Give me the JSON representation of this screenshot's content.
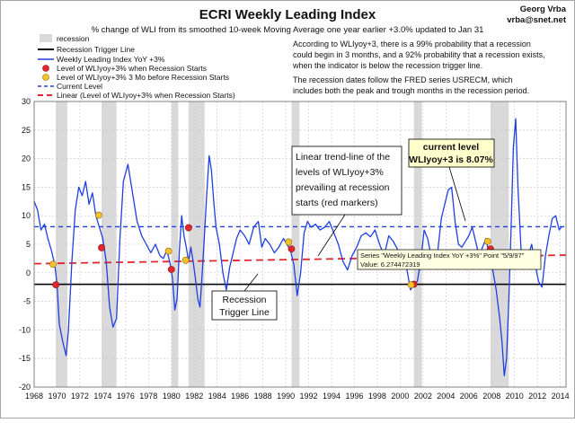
{
  "header": {
    "title": "ECRI Weekly Leading Index",
    "subtitle": "% change of WLI from its smoothed 10-week Moving Average one year earlier +3.0% updated to Jan 31",
    "author_line1": "Georg Vrba",
    "author_line2": "vrba@snet.net"
  },
  "legend": {
    "items": [
      {
        "key": "recession",
        "label": "recession"
      },
      {
        "key": "trigger",
        "label": "Recession Trigger Line"
      },
      {
        "key": "wli",
        "label": "Weekly Leading Index YoY +3%"
      },
      {
        "key": "red_dots",
        "label": "Level of WLIyoy+3% when Recession Starts"
      },
      {
        "key": "yellow_dots",
        "label": "Level of WLIyoy+3% 3 Mo before Recession Starts"
      },
      {
        "key": "current",
        "label": "Current Level"
      },
      {
        "key": "linear",
        "label": "Linear (Level of WLIyoy+3% when Recession Starts)"
      }
    ]
  },
  "notes": {
    "prob_lines": [
      "According to WLIyoy+3, there is a 99% probability that a recession",
      "could begin in 3 months, and a 92% probability that a recession exists,",
      "when the indicator is below the recession trigger line."
    ],
    "fred_lines": [
      "The recession dates follow the FRED series USRECM, which",
      "includes both the peak and trough months in the recession period."
    ]
  },
  "annotations": {
    "trend_lines": [
      "Linear trend-line of the",
      "levels of WLIyoy+3%",
      "prevailing at recession",
      "starts (red markers)"
    ],
    "current_lines": [
      "current level",
      "WLIyoy+3 is 8.07%"
    ],
    "trigger_lines": [
      "Recession",
      "Trigger Line"
    ],
    "tooltip_lines": [
      "Series \"Weekly Leading Index YoY +3%\" Point \"5/9/97\"",
      "Value: 6.274472319"
    ]
  },
  "colors": {
    "series": "#1f3fe0",
    "recession": "#d9d9d9",
    "trigger": "#000000",
    "red_marker": "#e3262b",
    "yellow_marker": "#f6c12e",
    "current": "#1f3fe0",
    "linear": "#e3262b",
    "plot_bg": "#ffffff",
    "annot_bg": "#ffffcc"
  },
  "chart_data": {
    "type": "line",
    "title": "ECRI Weekly Leading Index",
    "ylim": [
      -20,
      30
    ],
    "yticks": [
      -20,
      -15,
      -10,
      -5,
      0,
      5,
      10,
      15,
      20,
      25,
      30
    ],
    "xlim": [
      1968,
      2014.5
    ],
    "xticks": [
      "1968",
      "1970",
      "1972",
      "1974",
      "1976",
      "1978",
      "1980",
      "1982",
      "1984",
      "1986",
      "1988",
      "1990",
      "1992",
      "1994",
      "1996",
      "1998",
      "2000",
      "2002",
      "2004",
      "2006",
      "2008",
      "2010",
      "2012",
      "2014"
    ],
    "grid": true,
    "legend_position": "top-left",
    "recessions": [
      [
        1969.9,
        1970.9
      ],
      [
        1973.9,
        1975.2
      ],
      [
        1980.0,
        1980.6
      ],
      [
        1981.5,
        1982.9
      ],
      [
        1990.5,
        1991.2
      ],
      [
        2001.2,
        2001.9
      ],
      [
        2007.9,
        2009.5
      ]
    ],
    "trigger_level": -2.0,
    "current_level": 8.07,
    "linear_trend": {
      "start": [
        1968,
        1.6
      ],
      "end": [
        2014.5,
        3.1
      ]
    },
    "series": [
      {
        "name": "Weekly Leading Index YoY +3%",
        "x": [
          1968.0,
          1968.3,
          1968.6,
          1968.9,
          1969.2,
          1969.5,
          1969.8,
          1970.0,
          1970.2,
          1970.5,
          1970.8,
          1971.0,
          1971.3,
          1971.6,
          1971.9,
          1972.2,
          1972.5,
          1972.8,
          1973.1,
          1973.4,
          1973.7,
          1974.0,
          1974.3,
          1974.6,
          1974.9,
          1975.2,
          1975.5,
          1975.8,
          1976.2,
          1976.6,
          1977.0,
          1977.4,
          1977.8,
          1978.2,
          1978.6,
          1979.0,
          1979.3,
          1979.6,
          1979.9,
          1980.1,
          1980.3,
          1980.5,
          1980.7,
          1980.9,
          1981.1,
          1981.3,
          1981.5,
          1981.7,
          1981.9,
          1982.1,
          1982.3,
          1982.5,
          1982.7,
          1982.9,
          1983.1,
          1983.3,
          1983.5,
          1983.7,
          1983.9,
          1984.2,
          1984.5,
          1984.8,
          1985.1,
          1985.4,
          1985.7,
          1986.0,
          1986.4,
          1986.8,
          1987.2,
          1987.6,
          1987.9,
          1988.2,
          1988.6,
          1989.0,
          1989.4,
          1989.8,
          1990.1,
          1990.4,
          1990.7,
          1991.0,
          1991.3,
          1991.6,
          1991.9,
          1992.2,
          1992.6,
          1993.0,
          1993.4,
          1993.8,
          1994.2,
          1994.6,
          1995.0,
          1995.4,
          1995.8,
          1996.2,
          1996.6,
          1997.0,
          1997.4,
          1997.8,
          1998.2,
          1998.6,
          1999.0,
          1999.4,
          1999.8,
          2000.2,
          2000.6,
          2000.9,
          2001.2,
          2001.5,
          2001.8,
          2002.1,
          2002.4,
          2002.7,
          2003.0,
          2003.3,
          2003.6,
          2003.9,
          2004.2,
          2004.5,
          2004.8,
          2005.1,
          2005.4,
          2005.7,
          2006.0,
          2006.3,
          2006.6,
          2006.9,
          2007.2,
          2007.5,
          2007.8,
          2008.1,
          2008.4,
          2008.7,
          2008.9,
          2009.1,
          2009.3,
          2009.5,
          2009.7,
          2009.9,
          2010.1,
          2010.3,
          2010.6,
          2010.9,
          2011.2,
          2011.5,
          2011.8,
          2012.1,
          2012.4,
          2012.7,
          2013.0,
          2013.3,
          2013.6,
          2013.9,
          2014.1
        ],
        "y": [
          12.5,
          11.0,
          7.5,
          8.5,
          6.0,
          4.0,
          1.5,
          -2.0,
          -9.0,
          -12.0,
          -14.5,
          -10.0,
          2.0,
          11.0,
          15.0,
          13.5,
          16.0,
          12.0,
          14.0,
          10.0,
          8.0,
          6.0,
          2.0,
          -6.0,
          -9.5,
          -8.0,
          6.0,
          16.0,
          19.0,
          14.0,
          9.0,
          6.5,
          5.0,
          3.5,
          5.0,
          3.0,
          2.5,
          4.0,
          1.5,
          -1.0,
          -6.5,
          -4.5,
          4.0,
          10.0,
          6.5,
          4.5,
          2.0,
          4.5,
          2.0,
          -1.0,
          -4.5,
          -6.0,
          0.0,
          7.0,
          14.0,
          20.5,
          18.0,
          12.5,
          8.0,
          5.0,
          0.0,
          -3.0,
          1.0,
          3.5,
          6.0,
          7.5,
          6.5,
          5.0,
          8.0,
          9.0,
          4.5,
          6.0,
          5.0,
          3.5,
          4.5,
          6.0,
          5.0,
          4.0,
          1.5,
          -4.0,
          0.0,
          7.0,
          9.0,
          8.0,
          8.5,
          7.5,
          8.0,
          9.0,
          7.0,
          5.0,
          2.0,
          0.5,
          3.0,
          4.5,
          6.5,
          7.0,
          6.3,
          7.5,
          5.0,
          3.0,
          6.5,
          5.5,
          4.0,
          3.0,
          0.5,
          -3.0,
          -2.0,
          -1.5,
          2.0,
          7.5,
          6.0,
          3.0,
          2.0,
          4.0,
          9.5,
          12.0,
          14.5,
          15.0,
          9.0,
          5.0,
          4.5,
          5.5,
          6.5,
          8.0,
          5.5,
          3.0,
          4.5,
          6.0,
          3.0,
          0.5,
          -3.0,
          -8.0,
          -12.0,
          -18.0,
          -15.0,
          -5.0,
          8.0,
          22.0,
          27.0,
          15.0,
          3.0,
          1.5,
          3.0,
          5.0,
          1.5,
          -1.5,
          -2.5,
          3.0,
          6.5,
          9.5,
          10.0,
          7.5,
          8.07
        ]
      },
      {
        "name": "Level of WLIyoy+3% when Recession Starts",
        "x": [
          1969.9,
          1973.9,
          1980.0,
          1981.5,
          1990.5,
          2001.2,
          2007.9
        ],
        "y": [
          -2.1,
          4.4,
          0.6,
          7.9,
          4.2,
          -2.0,
          4.2
        ]
      },
      {
        "name": "Level of WLIyoy+3% 3 Mo before Recession Starts",
        "x": [
          1969.65,
          1973.65,
          1979.75,
          1981.25,
          1990.25,
          2000.95,
          2007.65
        ],
        "y": [
          1.5,
          10.1,
          3.8,
          2.2,
          5.4,
          -2.1,
          5.5
        ]
      }
    ]
  }
}
